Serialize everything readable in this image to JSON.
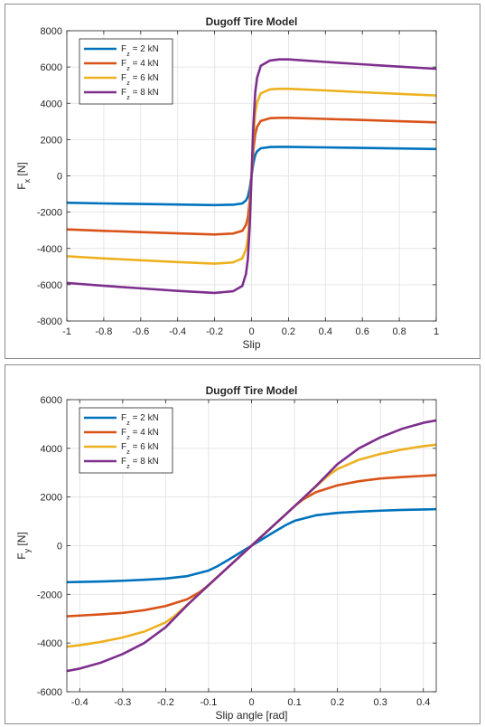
{
  "chart_data": [
    {
      "type": "line",
      "title": "Dugoff Tire Model",
      "xlabel": "Slip",
      "ylabel": {
        "main": "F",
        "sub": "x",
        "rest": " [N]"
      },
      "xlim": [
        -1,
        1
      ],
      "ylim": [
        -8000,
        8000
      ],
      "xticks": [
        -1,
        -0.8,
        -0.6,
        -0.4,
        -0.2,
        0,
        0.2,
        0.4,
        0.6,
        0.8,
        1
      ],
      "yticks": [
        -8000,
        -6000,
        -4000,
        -2000,
        0,
        2000,
        4000,
        6000,
        8000
      ],
      "grid": true,
      "legend_position": "top-left",
      "series": [
        {
          "name": {
            "main": "F",
            "sub": "z",
            "rest": " = 2 kN"
          },
          "color": "#0072BD",
          "x": [
            -1,
            -0.8,
            -0.6,
            -0.4,
            -0.2,
            -0.1,
            -0.05,
            -0.03,
            -0.02,
            -0.01,
            0,
            0.01,
            0.02,
            0.03,
            0.05,
            0.1,
            0.15,
            0.2,
            0.4,
            0.6,
            0.8,
            1
          ],
          "y": [
            -1480,
            -1520,
            -1550,
            -1580,
            -1610,
            -1590,
            -1520,
            -1350,
            -1150,
            -700,
            0,
            700,
            1150,
            1350,
            1520,
            1590,
            1600,
            1600,
            1570,
            1540,
            1510,
            1480
          ]
        },
        {
          "name": {
            "main": "F",
            "sub": "z",
            "rest": " = 4 kN"
          },
          "color": "#D95319",
          "x": [
            -1,
            -0.8,
            -0.6,
            -0.4,
            -0.2,
            -0.1,
            -0.05,
            -0.03,
            -0.02,
            -0.01,
            0,
            0.01,
            0.02,
            0.03,
            0.05,
            0.1,
            0.15,
            0.2,
            0.4,
            0.6,
            0.8,
            1
          ],
          "y": [
            -2950,
            -3030,
            -3100,
            -3170,
            -3230,
            -3180,
            -3030,
            -2700,
            -2300,
            -1400,
            0,
            1400,
            2300,
            2700,
            3030,
            3180,
            3200,
            3200,
            3140,
            3080,
            3010,
            2950
          ]
        },
        {
          "name": {
            "main": "F",
            "sub": "z",
            "rest": " = 6 kN"
          },
          "color": "#EDB120",
          "x": [
            -1,
            -0.8,
            -0.6,
            -0.4,
            -0.2,
            -0.1,
            -0.05,
            -0.03,
            -0.02,
            -0.01,
            0,
            0.01,
            0.02,
            0.03,
            0.05,
            0.1,
            0.15,
            0.2,
            0.4,
            0.6,
            0.8,
            1
          ],
          "y": [
            -4430,
            -4550,
            -4650,
            -4750,
            -4840,
            -4770,
            -4550,
            -4050,
            -3450,
            -2100,
            0,
            2100,
            3450,
            4050,
            4550,
            4770,
            4800,
            4800,
            4710,
            4610,
            4520,
            4430
          ]
        },
        {
          "name": {
            "main": "F",
            "sub": "z",
            "rest": " = 8 kN"
          },
          "color": "#7E2F8E",
          "x": [
            -1,
            -0.8,
            -0.6,
            -0.4,
            -0.2,
            -0.1,
            -0.05,
            -0.03,
            -0.02,
            -0.01,
            0,
            0.01,
            0.02,
            0.03,
            0.05,
            0.1,
            0.15,
            0.2,
            0.4,
            0.6,
            0.8,
            1
          ],
          "y": [
            -5900,
            -6060,
            -6200,
            -6340,
            -6450,
            -6360,
            -6070,
            -5400,
            -4600,
            -2800,
            0,
            2800,
            4600,
            5400,
            6070,
            6360,
            6420,
            6420,
            6280,
            6150,
            6020,
            5900
          ]
        }
      ]
    },
    {
      "type": "line",
      "title": "Dugoff Tire Model",
      "xlabel": "Slip angle [rad]",
      "ylabel": {
        "main": "F",
        "sub": "y",
        "rest": " [N]"
      },
      "xlim": [
        -0.43,
        0.43
      ],
      "ylim": [
        -6000,
        6000
      ],
      "xticks": [
        -0.4,
        -0.3,
        -0.2,
        -0.1,
        0,
        0.1,
        0.2,
        0.3,
        0.4
      ],
      "yticks": [
        -6000,
        -4000,
        -2000,
        0,
        2000,
        4000,
        6000
      ],
      "grid": true,
      "legend_position": "top-left",
      "series": [
        {
          "name": {
            "main": "F",
            "sub": "z",
            "rest": " = 2 kN"
          },
          "color": "#0072BD",
          "x": [
            -0.43,
            -0.4,
            -0.35,
            -0.3,
            -0.25,
            -0.2,
            -0.15,
            -0.1,
            -0.08,
            -0.05,
            0,
            0.05,
            0.08,
            0.1,
            0.15,
            0.2,
            0.25,
            0.3,
            0.35,
            0.4,
            0.43
          ],
          "y": [
            -1500,
            -1490,
            -1470,
            -1440,
            -1400,
            -1350,
            -1250,
            -1020,
            -850,
            -540,
            0,
            540,
            850,
            1020,
            1250,
            1350,
            1400,
            1440,
            1470,
            1490,
            1500
          ]
        },
        {
          "name": {
            "main": "F",
            "sub": "z",
            "rest": " = 4 kN"
          },
          "color": "#D95319",
          "x": [
            -0.43,
            -0.4,
            -0.35,
            -0.3,
            -0.25,
            -0.2,
            -0.15,
            -0.12,
            -0.1,
            -0.05,
            0,
            0.05,
            0.1,
            0.12,
            0.15,
            0.2,
            0.25,
            0.3,
            0.35,
            0.4,
            0.43
          ],
          "y": [
            -2900,
            -2870,
            -2820,
            -2760,
            -2650,
            -2480,
            -2200,
            -1900,
            -1620,
            -810,
            0,
            810,
            1620,
            1900,
            2200,
            2480,
            2650,
            2760,
            2820,
            2870,
            2900
          ]
        },
        {
          "name": {
            "main": "F",
            "sub": "z",
            "rest": " = 6 kN"
          },
          "color": "#EDB120",
          "x": [
            -0.43,
            -0.4,
            -0.35,
            -0.3,
            -0.25,
            -0.2,
            -0.18,
            -0.15,
            -0.1,
            -0.05,
            0,
            0.05,
            0.1,
            0.15,
            0.18,
            0.2,
            0.25,
            0.3,
            0.35,
            0.4,
            0.43
          ],
          "y": [
            -4150,
            -4090,
            -3950,
            -3770,
            -3530,
            -3150,
            -2900,
            -2430,
            -1620,
            -810,
            0,
            810,
            1620,
            2430,
            2900,
            3150,
            3530,
            3770,
            3950,
            4090,
            4150
          ]
        },
        {
          "name": {
            "main": "F",
            "sub": "z",
            "rest": " = 8 kN"
          },
          "color": "#7E2F8E",
          "x": [
            -0.43,
            -0.4,
            -0.35,
            -0.3,
            -0.25,
            -0.2,
            -0.15,
            -0.1,
            -0.05,
            0,
            0.05,
            0.1,
            0.15,
            0.2,
            0.25,
            0.3,
            0.35,
            0.4,
            0.43
          ],
          "y": [
            -5150,
            -5050,
            -4800,
            -4450,
            -4000,
            -3350,
            -2450,
            -1620,
            -810,
            0,
            810,
            1620,
            2450,
            3350,
            4000,
            4450,
            4800,
            5050,
            5150
          ]
        }
      ]
    }
  ]
}
